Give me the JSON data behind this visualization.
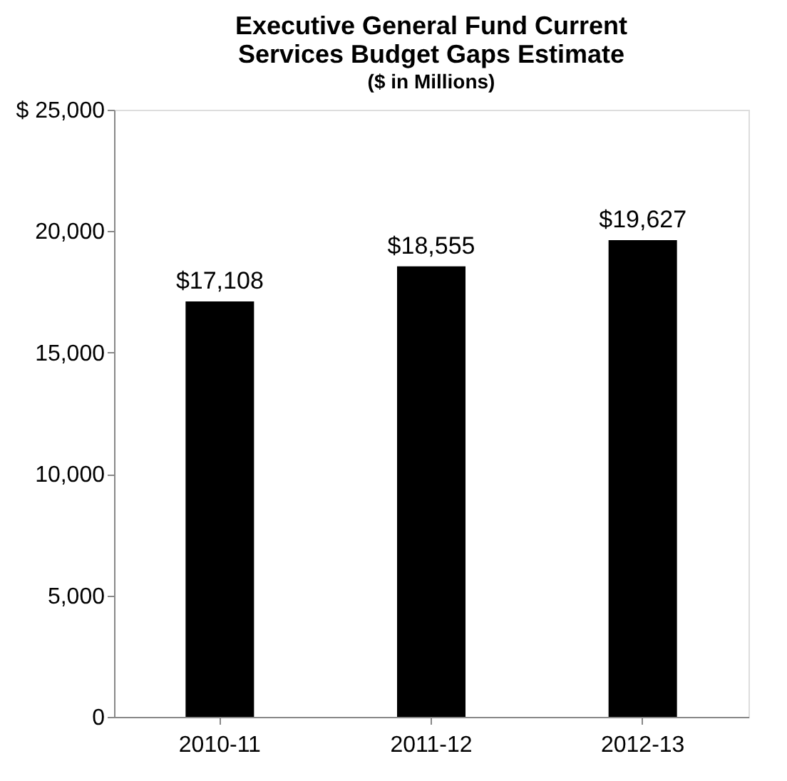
{
  "chart_data": {
    "type": "bar",
    "title": "Executive General Fund Current\nServices Budget Gaps Estimate",
    "subtitle": "($ in Millions)",
    "categories": [
      "2010-11",
      "2011-12",
      "2012-13"
    ],
    "values": [
      17108,
      18555,
      19627
    ],
    "value_labels": [
      "$17,108",
      "$18,555",
      "$19,627"
    ],
    "color": "#000000",
    "ylim": [
      0,
      25000
    ],
    "yticks": [
      0,
      {
        "value": 5000,
        "label": "5,000"
      },
      {
        "value": 10000,
        "label": "10,000"
      },
      {
        "value": 15000,
        "label": "15,000"
      },
      {
        "value": 20000,
        "label": "20,000"
      },
      {
        "value": 25000,
        "label": "$ 25,000"
      }
    ],
    "grid": false
  }
}
